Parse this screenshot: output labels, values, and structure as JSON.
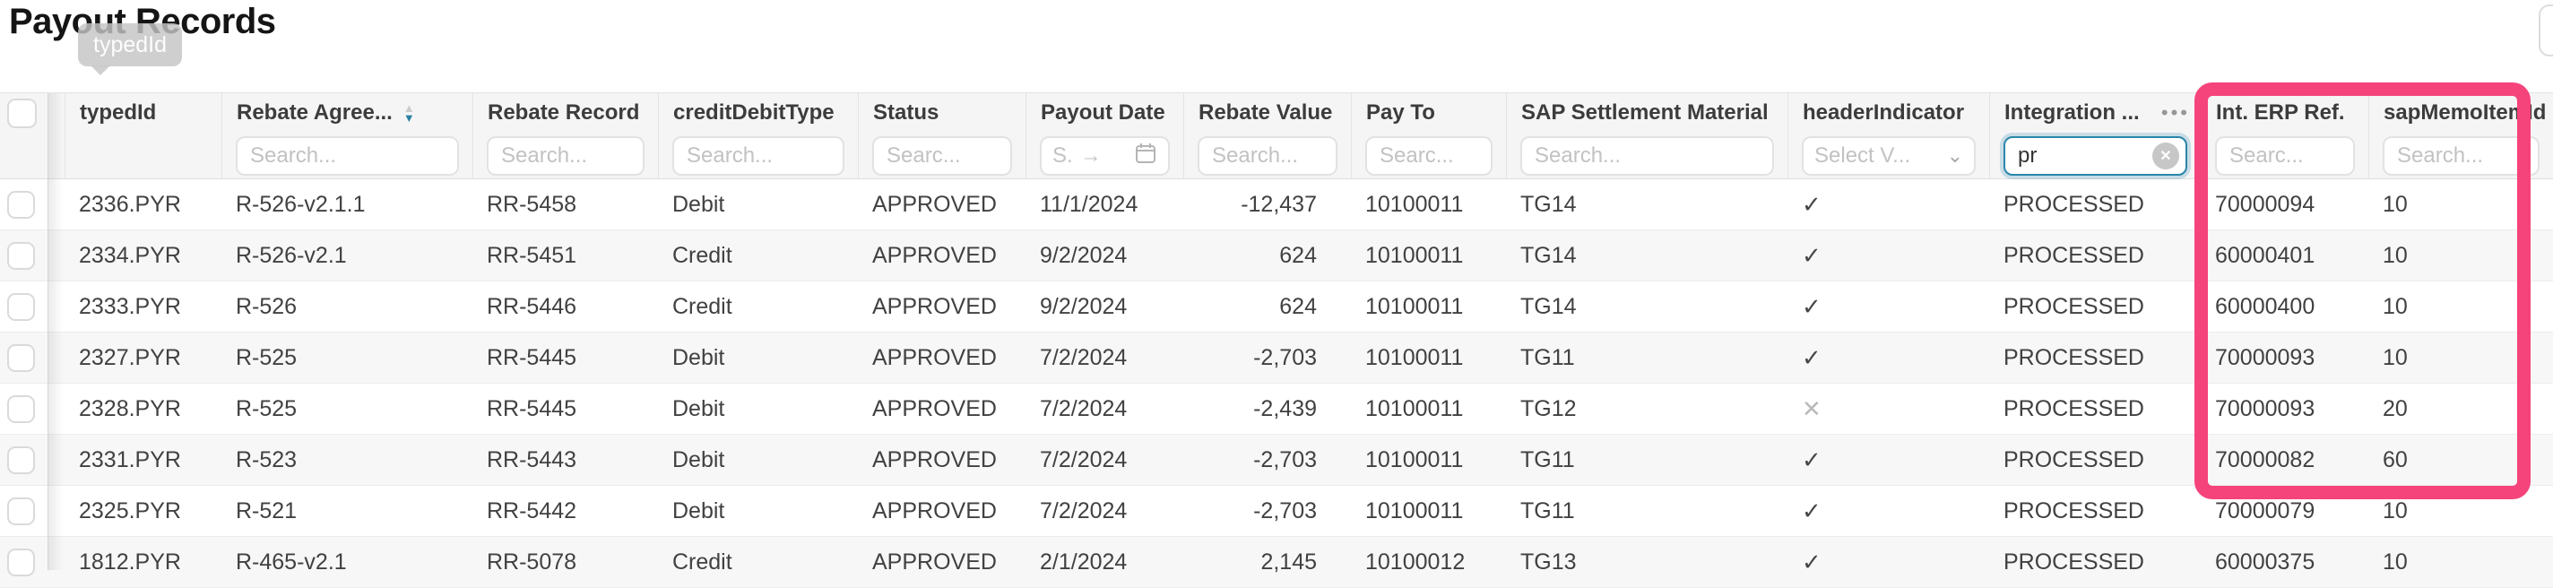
{
  "page": {
    "title": "Payout Records"
  },
  "tooltip": {
    "text": "typedId"
  },
  "icons": {
    "sort_asc": "▲",
    "sort_desc": "▼",
    "more_horizontal": "•••",
    "chevron_down": "⌄",
    "clear_circle_x": "✕",
    "date_range_arrow": "→",
    "check": "✓",
    "cross": "✕"
  },
  "colors": {
    "highlight_box": "#f5437c",
    "focused_filter_border": "#2a86aa",
    "active_sort": "#2c7fa3"
  },
  "table": {
    "columns": [
      {
        "key": "select",
        "type": "checkbox",
        "label": ""
      },
      {
        "key": "typedId",
        "label": "typedId",
        "filter": {
          "type": "none"
        }
      },
      {
        "key": "rebateAgreement",
        "label": "Rebate Agree...",
        "sort": "desc",
        "filter": {
          "type": "text",
          "placeholder": "Search..."
        }
      },
      {
        "key": "rebateRecord",
        "label": "Rebate Record",
        "filter": {
          "type": "text",
          "placeholder": "Search..."
        }
      },
      {
        "key": "creditDebitType",
        "label": "creditDebitType",
        "filter": {
          "type": "text",
          "placeholder": "Search..."
        }
      },
      {
        "key": "status",
        "label": "Status",
        "filter": {
          "type": "text",
          "placeholder": "Searc..."
        }
      },
      {
        "key": "payoutDate",
        "label": "Payout Date",
        "filter": {
          "type": "date",
          "placeholder": "S."
        }
      },
      {
        "key": "rebateValue",
        "label": "Rebate Value",
        "align": "right",
        "filter": {
          "type": "text",
          "placeholder": "Search..."
        }
      },
      {
        "key": "payTo",
        "label": "Pay To",
        "filter": {
          "type": "text",
          "placeholder": "Searc..."
        }
      },
      {
        "key": "sapSettlementMaterial",
        "label": "SAP Settlement Material",
        "filter": {
          "type": "text",
          "placeholder": "Search..."
        }
      },
      {
        "key": "headerIndicator",
        "label": "headerIndicator",
        "filter": {
          "type": "select",
          "placeholder": "Select V..."
        }
      },
      {
        "key": "integration",
        "label": "Integration ...",
        "menu": true,
        "filter": {
          "type": "text",
          "value": "pr",
          "focused": true,
          "clearable": true
        }
      },
      {
        "key": "intErpRef",
        "label": "Int. ERP Ref.",
        "filter": {
          "type": "text",
          "placeholder": "Searc..."
        }
      },
      {
        "key": "sapMemoItemId",
        "label": "sapMemoItemId",
        "filter": {
          "type": "text",
          "placeholder": "Search..."
        }
      }
    ],
    "rows": [
      {
        "typedId": "2336.PYR",
        "rebateAgreement": "R-526-v2.1.1",
        "rebateRecord": "RR-5458",
        "creditDebitType": "Debit",
        "status": "APPROVED",
        "payoutDate": "11/1/2024",
        "rebateValue": "-12,437",
        "payTo": "10100011",
        "sapSettlementMaterial": "TG14",
        "headerIndicator": "check",
        "integration": "PROCESSED",
        "intErpRef": "70000094",
        "sapMemoItemId": "10"
      },
      {
        "typedId": "2334.PYR",
        "rebateAgreement": "R-526-v2.1",
        "rebateRecord": "RR-5451",
        "creditDebitType": "Credit",
        "status": "APPROVED",
        "payoutDate": "9/2/2024",
        "rebateValue": "624",
        "payTo": "10100011",
        "sapSettlementMaterial": "TG14",
        "headerIndicator": "check",
        "integration": "PROCESSED",
        "intErpRef": "60000401",
        "sapMemoItemId": "10"
      },
      {
        "typedId": "2333.PYR",
        "rebateAgreement": "R-526",
        "rebateRecord": "RR-5446",
        "creditDebitType": "Credit",
        "status": "APPROVED",
        "payoutDate": "9/2/2024",
        "rebateValue": "624",
        "payTo": "10100011",
        "sapSettlementMaterial": "TG14",
        "headerIndicator": "check",
        "integration": "PROCESSED",
        "intErpRef": "60000400",
        "sapMemoItemId": "10"
      },
      {
        "typedId": "2327.PYR",
        "rebateAgreement": "R-525",
        "rebateRecord": "RR-5445",
        "creditDebitType": "Debit",
        "status": "APPROVED",
        "payoutDate": "7/2/2024",
        "rebateValue": "-2,703",
        "payTo": "10100011",
        "sapSettlementMaterial": "TG11",
        "headerIndicator": "check",
        "integration": "PROCESSED",
        "intErpRef": "70000093",
        "sapMemoItemId": "10"
      },
      {
        "typedId": "2328.PYR",
        "rebateAgreement": "R-525",
        "rebateRecord": "RR-5445",
        "creditDebitType": "Debit",
        "status": "APPROVED",
        "payoutDate": "7/2/2024",
        "rebateValue": "-2,439",
        "payTo": "10100011",
        "sapSettlementMaterial": "TG12",
        "headerIndicator": "cross",
        "integration": "PROCESSED",
        "intErpRef": "70000093",
        "sapMemoItemId": "20"
      },
      {
        "typedId": "2331.PYR",
        "rebateAgreement": "R-523",
        "rebateRecord": "RR-5443",
        "creditDebitType": "Debit",
        "status": "APPROVED",
        "payoutDate": "7/2/2024",
        "rebateValue": "-2,703",
        "payTo": "10100011",
        "sapSettlementMaterial": "TG11",
        "headerIndicator": "check",
        "integration": "PROCESSED",
        "intErpRef": "70000082",
        "sapMemoItemId": "60"
      },
      {
        "typedId": "2325.PYR",
        "rebateAgreement": "R-521",
        "rebateRecord": "RR-5442",
        "creditDebitType": "Debit",
        "status": "APPROVED",
        "payoutDate": "7/2/2024",
        "rebateValue": "-2,703",
        "payTo": "10100011",
        "sapSettlementMaterial": "TG11",
        "headerIndicator": "check",
        "integration": "PROCESSED",
        "intErpRef": "70000079",
        "sapMemoItemId": "10"
      },
      {
        "typedId": "1812.PYR",
        "rebateAgreement": "R-465-v2.1",
        "rebateRecord": "RR-5078",
        "creditDebitType": "Credit",
        "status": "APPROVED",
        "payoutDate": "2/1/2024",
        "rebateValue": "2,145",
        "payTo": "10100012",
        "sapSettlementMaterial": "TG13",
        "headerIndicator": "check",
        "integration": "PROCESSED",
        "intErpRef": "60000375",
        "sapMemoItemId": "10"
      }
    ]
  },
  "annotations": {
    "highlight_box": {
      "color": "#f5437c"
    }
  }
}
